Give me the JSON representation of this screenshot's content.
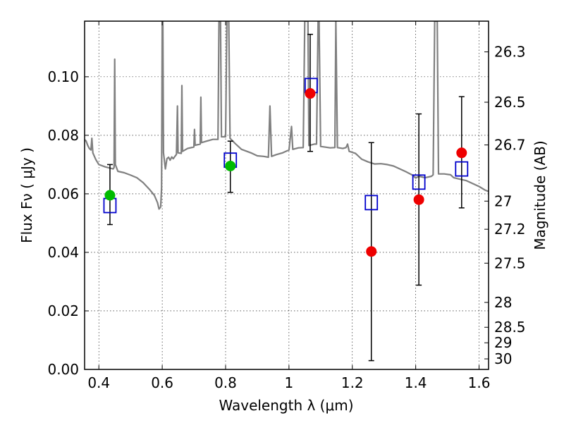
{
  "chart_data": {
    "type": "scatter",
    "xlabel": "Wavelength  λ (μm)",
    "ylabel": "Flux  Fν ( μJy )",
    "ylabel_right": "Magnitude (AB)",
    "xlim": [
      0.355,
      1.63
    ],
    "ylim": [
      0.0,
      0.119
    ],
    "grid": true,
    "x_ticks": [
      0.4,
      0.6,
      0.8,
      1.0,
      1.2,
      1.4,
      1.6
    ],
    "x_tick_labels": [
      "0.4",
      "0.6",
      "0.8",
      "1",
      "1.2",
      "1.4",
      "1.6"
    ],
    "y_ticks": [
      0.0,
      0.02,
      0.04,
      0.06,
      0.08,
      0.1
    ],
    "y_tick_labels": [
      "0.00",
      "0.02",
      "0.04",
      "0.06",
      "0.08",
      "0.10"
    ],
    "right_ticks": [
      {
        "label": "26.3",
        "flux": 0.1085
      },
      {
        "label": "26.5",
        "flux": 0.0913
      },
      {
        "label": "26.7",
        "flux": 0.0767
      },
      {
        "label": "27",
        "flux": 0.0575
      },
      {
        "label": "27.2",
        "flux": 0.0479
      },
      {
        "label": "27.5",
        "flux": 0.0363
      },
      {
        "label": "28",
        "flux": 0.0229
      },
      {
        "label": "28.5",
        "flux": 0.0144
      },
      {
        "label": "29",
        "flux": 0.0091
      },
      {
        "label": "30",
        "flux": 0.0036
      }
    ],
    "colors": {
      "template": "#808080",
      "model": "#0000cc",
      "optical": "#00bb00",
      "infrared": "#ee0000",
      "errorbar": "#000000"
    },
    "series": [
      {
        "kind": "template_spectrum",
        "points": [
          [
            0.355,
            0.0785
          ],
          [
            0.36,
            0.078
          ],
          [
            0.365,
            0.0765
          ],
          [
            0.37,
            0.0755
          ],
          [
            0.375,
            0.075
          ],
          [
            0.378,
            0.079
          ],
          [
            0.381,
            0.074
          ],
          [
            0.39,
            0.0718
          ],
          [
            0.4,
            0.07
          ],
          [
            0.42,
            0.0692
          ],
          [
            0.445,
            0.0685
          ],
          [
            0.448,
            0.069
          ],
          [
            0.45,
            0.106
          ],
          [
            0.452,
            0.07
          ],
          [
            0.46,
            0.0677
          ],
          [
            0.48,
            0.0672
          ],
          [
            0.5,
            0.0664
          ],
          [
            0.52,
            0.0655
          ],
          [
            0.54,
            0.0638
          ],
          [
            0.56,
            0.0615
          ],
          [
            0.575,
            0.0595
          ],
          [
            0.585,
            0.057
          ],
          [
            0.59,
            0.0548
          ],
          [
            0.595,
            0.0555
          ],
          [
            0.598,
            0.062
          ],
          [
            0.6,
            0.119
          ],
          [
            0.602,
            0.119
          ],
          [
            0.604,
            0.074
          ],
          [
            0.61,
            0.0685
          ],
          [
            0.615,
            0.072
          ],
          [
            0.62,
            0.0725
          ],
          [
            0.625,
            0.0715
          ],
          [
            0.63,
            0.0726
          ],
          [
            0.635,
            0.072
          ],
          [
            0.64,
            0.0728
          ],
          [
            0.645,
            0.0735
          ],
          [
            0.648,
            0.09
          ],
          [
            0.65,
            0.074
          ],
          [
            0.66,
            0.0738
          ],
          [
            0.662,
            0.097
          ],
          [
            0.664,
            0.0745
          ],
          [
            0.68,
            0.0755
          ],
          [
            0.7,
            0.076
          ],
          [
            0.702,
            0.082
          ],
          [
            0.704,
            0.0766
          ],
          [
            0.72,
            0.077
          ],
          [
            0.722,
            0.093
          ],
          [
            0.724,
            0.0775
          ],
          [
            0.74,
            0.078
          ],
          [
            0.76,
            0.0786
          ],
          [
            0.776,
            0.0786
          ],
          [
            0.779,
            0.119
          ],
          [
            0.784,
            0.119
          ],
          [
            0.787,
            0.0795
          ],
          [
            0.8,
            0.0795
          ],
          [
            0.804,
            0.119
          ],
          [
            0.81,
            0.119
          ],
          [
            0.814,
            0.079
          ],
          [
            0.83,
            0.0772
          ],
          [
            0.85,
            0.0752
          ],
          [
            0.88,
            0.074
          ],
          [
            0.9,
            0.073
          ],
          [
            0.92,
            0.0728
          ],
          [
            0.935,
            0.0725
          ],
          [
            0.94,
            0.09
          ],
          [
            0.945,
            0.0728
          ],
          [
            0.96,
            0.0734
          ],
          [
            0.98,
            0.074
          ],
          [
            1.0,
            0.075
          ],
          [
            1.008,
            0.083
          ],
          [
            1.012,
            0.0752
          ],
          [
            1.03,
            0.0757
          ],
          [
            1.045,
            0.0758
          ],
          [
            1.05,
            0.119
          ],
          [
            1.06,
            0.119
          ],
          [
            1.063,
            0.0765
          ],
          [
            1.08,
            0.077
          ],
          [
            1.087,
            0.077
          ],
          [
            1.092,
            0.119
          ],
          [
            1.095,
            0.119
          ],
          [
            1.1,
            0.0762
          ],
          [
            1.13,
            0.0757
          ],
          [
            1.145,
            0.0758
          ],
          [
            1.148,
            0.119
          ],
          [
            1.153,
            0.0758
          ],
          [
            1.17,
            0.0755
          ],
          [
            1.18,
            0.0758
          ],
          [
            1.185,
            0.077
          ],
          [
            1.19,
            0.0745
          ],
          [
            1.21,
            0.0738
          ],
          [
            1.23,
            0.0718
          ],
          [
            1.25,
            0.0709
          ],
          [
            1.27,
            0.0702
          ],
          [
            1.29,
            0.0703
          ],
          [
            1.31,
            0.07
          ],
          [
            1.33,
            0.0695
          ],
          [
            1.35,
            0.0685
          ],
          [
            1.37,
            0.0675
          ],
          [
            1.39,
            0.0664
          ],
          [
            1.4,
            0.0654
          ],
          [
            1.41,
            0.066
          ],
          [
            1.43,
            0.0655
          ],
          [
            1.45,
            0.066
          ],
          [
            1.455,
            0.0665
          ],
          [
            1.46,
            0.119
          ],
          [
            1.468,
            0.119
          ],
          [
            1.472,
            0.0668
          ],
          [
            1.49,
            0.0668
          ],
          [
            1.51,
            0.0665
          ],
          [
            1.52,
            0.0655
          ],
          [
            1.54,
            0.065
          ],
          [
            1.56,
            0.0645
          ],
          [
            1.58,
            0.0635
          ],
          [
            1.6,
            0.0625
          ],
          [
            1.62,
            0.0612
          ],
          [
            1.63,
            0.0608
          ]
        ]
      },
      {
        "kind": "model_band_fluxes",
        "marker": "open-square",
        "x": [
          0.435,
          0.815,
          1.07,
          1.26,
          1.41,
          1.545
        ],
        "y": [
          0.056,
          0.0715,
          0.097,
          0.057,
          0.064,
          0.0685
        ]
      },
      {
        "kind": "observed_optical",
        "marker": "filled-circle",
        "x": [
          0.435,
          0.815
        ],
        "y": [
          0.0595,
          0.0695
        ],
        "yerr_low": [
          0.0495,
          0.0605
        ],
        "yerr_high": [
          0.07,
          0.078
        ]
      },
      {
        "kind": "observed_infrared",
        "marker": "filled-circle",
        "x": [
          1.067,
          1.26,
          1.41,
          1.545
        ],
        "y": [
          0.0943,
          0.0403,
          0.058,
          0.074
        ],
        "yerr_low": [
          0.0745,
          0.003,
          0.0288,
          0.0552
        ],
        "yerr_high": [
          0.1145,
          0.0775,
          0.0873,
          0.0932
        ]
      }
    ]
  }
}
